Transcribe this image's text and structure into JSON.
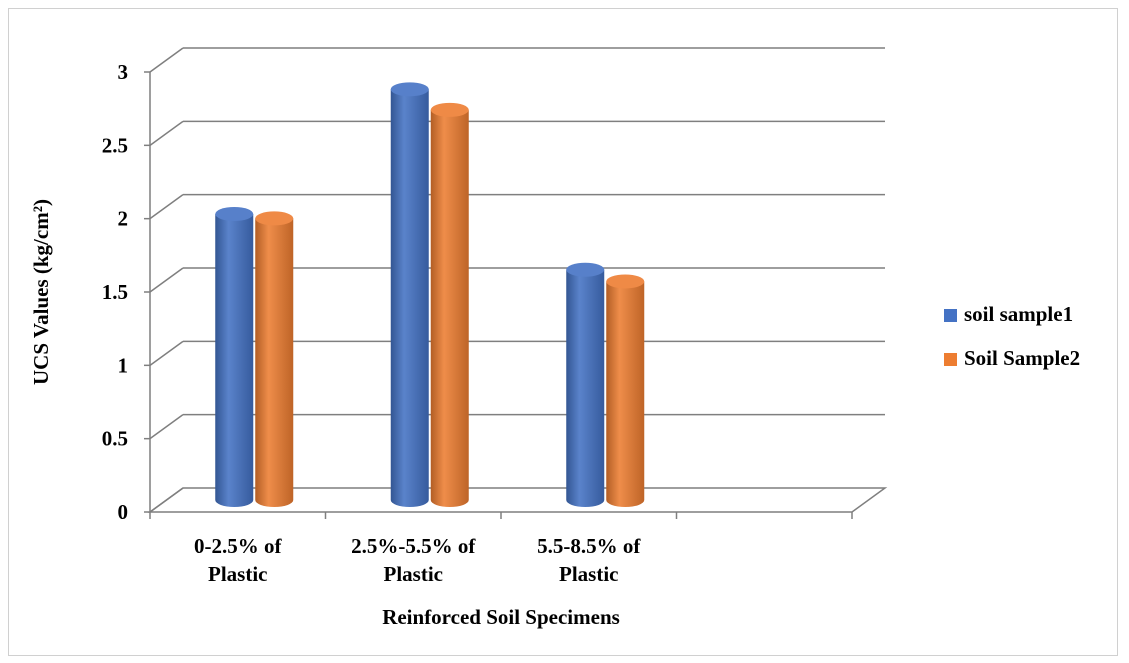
{
  "chart_data": {
    "type": "bar",
    "style": "3d-cylinder",
    "categories": [
      [
        "0-2.5% of",
        "Plastic"
      ],
      [
        "2.5%-5.5% of",
        "Plastic"
      ],
      [
        "5.5-8.5% of",
        "Plastic"
      ],
      [
        "",
        ""
      ]
    ],
    "series": [
      {
        "name": "soil sample1",
        "color": "#4472C4",
        "values": [
          1.95,
          2.8,
          1.57,
          null
        ]
      },
      {
        "name": "Soil Sample2",
        "color": "#ED7D31",
        "values": [
          1.92,
          2.66,
          1.49,
          null
        ]
      }
    ],
    "xlabel": "Reinforced Soil Specimens",
    "ylabel": "UCS Values (kg/cm²)",
    "ylim": [
      0,
      3
    ],
    "yticks": [
      "0",
      "0.5",
      "1",
      "1.5",
      "2",
      "2.5",
      "3"
    ],
    "grid": true,
    "legend_position": "right"
  }
}
